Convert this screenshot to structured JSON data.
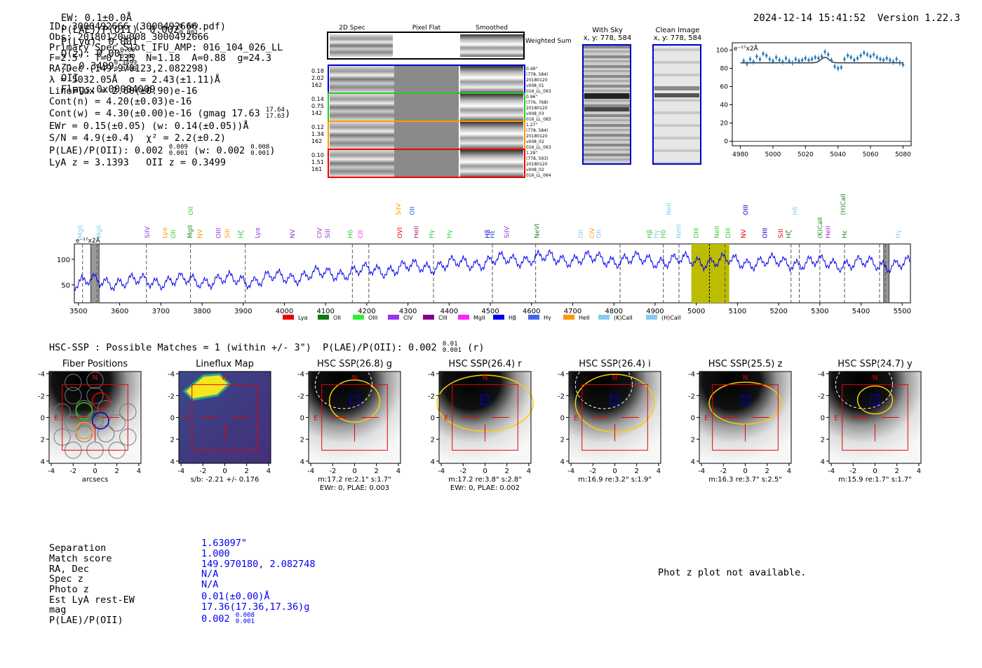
{
  "header": {
    "ew": "EW: 0.1±0.0Å",
    "plae_oii": "P(LAE)/P(OII): 0.002",
    "plae_hi": "0.009",
    "plae_lo": "0.001",
    "plya": "P(Lyα): 0.001",
    "qz": "Q(z): 0.00",
    "qz_hi": "0.00",
    "qz_lo": "0.00",
    "z": "z: 0.3499",
    "z_hi": "0.3499",
    "z_lo": "0.3499",
    "z_line": "OII",
    "flags": "Flags:0x00004009",
    "timestamp": "2024-12-14 15:41:52",
    "version": "Version 1.22.3"
  },
  "info": {
    "id": "ID: 3000492666 (3000492666.pdf)",
    "obs": "Obs: 20180120v008_3000492666",
    "primary": "Primary Spec_Slot_IFU_AMP: 016_104_026_LL",
    "params": "F=2.5\"  T=0.135  N=1.18  A=0.88  g=24.3",
    "radec": "RA,Dec (149.970123,2.082298)",
    "lambda": "λ = 5032.05Å  σ = 2.43(±1.11)Å",
    "lineflux": "LineFlux = 2.60(±0.90)e-16",
    "contn": "Cont(n) = 4.20(±0.03)e-16",
    "contw": "Cont(w) = 4.30(±0.00)e-16 (gmag 17.63",
    "contw_hi": "17.64",
    "contw_lo": "17.63",
    "ewr": "EWr = 0.15(±0.05) (w: 0.14(±0.05))Å",
    "sn": "S/N = 4.9(±0.4)  χ² = 2.2(±0.2)",
    "plae": "P(LAE)/P(OII): 0.002",
    "plae_hi": "0.009",
    "plae_lo": "0.001",
    "plae_w": "(w: 0.002",
    "plae_w_hi": "0.008",
    "plae_w_lo": "0.001",
    "lya_z": "LyA z = 3.1393   OII z = 0.3499"
  },
  "cutouts": {
    "col_2d": "2D Spec",
    "col_flat": "Pixel Flat",
    "col_smooth": "Smoothed",
    "weighted": "Weighted Sum",
    "rows": [
      {
        "a": "0.18",
        "b": "2.02",
        "c": "162",
        "note1": "0.49\"",
        "note2": "(778, 584)",
        "note3": "20180120",
        "note4": "v008_01",
        "note5": "016_LL_063",
        "color": "#0000cc"
      },
      {
        "a": "0.14",
        "b": "0.75",
        "c": "142",
        "note1": "0.96\"",
        "note2": "(776, 768)",
        "note3": "20180120",
        "note4": "v008_03",
        "note5": "016_LL_083",
        "color": "#22cc22"
      },
      {
        "a": "0.12",
        "b": "1.34",
        "c": "162",
        "note1": "1.27\"",
        "note2": "(778, 584)",
        "note3": "20180120",
        "note4": "v008_02",
        "note5": "016_LL_063",
        "color": "#ff9900"
      },
      {
        "a": "0.10",
        "b": "1.51",
        "c": "161",
        "note1": "1.29\"",
        "note2": "(778, 593)",
        "note3": "20180120",
        "note4": "v008_02",
        "note5": "016_LL_064",
        "color": "#ee0000"
      }
    ],
    "with_sky": "With Sky",
    "with_sky_xy": "x, y: 778, 584",
    "clean": "Clean Image",
    "clean_xy": "x, y: 778, 584"
  },
  "line_fit": {
    "unit": "e⁻¹⁷x2Å",
    "xlim": [
      4975,
      5085
    ],
    "ylim": [
      -5,
      108
    ],
    "xticks": [
      4980,
      5000,
      5020,
      5040,
      5060,
      5080
    ],
    "yticks": [
      0,
      20,
      40,
      60,
      80,
      100
    ],
    "points": [
      [
        4982,
        88
      ],
      [
        4984,
        85
      ],
      [
        4986,
        90
      ],
      [
        4988,
        87
      ],
      [
        4990,
        93
      ],
      [
        4992,
        90
      ],
      [
        4994,
        96
      ],
      [
        4996,
        94
      ],
      [
        4998,
        90
      ],
      [
        5000,
        88
      ],
      [
        5002,
        92
      ],
      [
        5004,
        89
      ],
      [
        5006,
        87
      ],
      [
        5008,
        91
      ],
      [
        5010,
        88
      ],
      [
        5012,
        86
      ],
      [
        5014,
        90
      ],
      [
        5016,
        88
      ],
      [
        5018,
        89
      ],
      [
        5020,
        91
      ],
      [
        5022,
        89
      ],
      [
        5024,
        90
      ],
      [
        5026,
        92
      ],
      [
        5028,
        91
      ],
      [
        5030,
        93
      ],
      [
        5032,
        98
      ],
      [
        5034,
        95
      ],
      [
        5036,
        89
      ],
      [
        5038,
        82
      ],
      [
        5040,
        80
      ],
      [
        5042,
        81
      ],
      [
        5044,
        90
      ],
      [
        5046,
        94
      ],
      [
        5048,
        92
      ],
      [
        5050,
        89
      ],
      [
        5052,
        91
      ],
      [
        5054,
        94
      ],
      [
        5056,
        97
      ],
      [
        5058,
        95
      ],
      [
        5060,
        93
      ],
      [
        5062,
        95
      ],
      [
        5064,
        92
      ],
      [
        5066,
        90
      ],
      [
        5068,
        89
      ],
      [
        5070,
        91
      ],
      [
        5072,
        89
      ],
      [
        5074,
        87
      ],
      [
        5076,
        90
      ],
      [
        5078,
        86
      ],
      [
        5080,
        84
      ]
    ],
    "fit_base": 86,
    "fit_peak": 6,
    "fit_center": 5032,
    "fit_sigma": 2.43
  },
  "spectrum": {
    "unit": "e⁻¹⁷x2Å",
    "xlim": [
      3490,
      5520
    ],
    "ylim": [
      15,
      130
    ],
    "xticks": [
      3500,
      3600,
      3700,
      3800,
      3900,
      4000,
      4100,
      4200,
      4300,
      4400,
      4500,
      4600,
      4700,
      4800,
      4900,
      5000,
      5100,
      5200,
      5300,
      5400,
      5500
    ],
    "yticks": [
      50,
      100
    ],
    "highlight": [
      4988,
      5080
    ],
    "line_pos": 5032,
    "hatched": [
      [
        3530,
        3550
      ],
      [
        5455,
        5468
      ]
    ],
    "dashed": [
      3510,
      3545,
      3665,
      3772,
      3905,
      4165,
      4205,
      4362,
      4505,
      4610,
      4815,
      4920,
      4958,
      5070,
      5230,
      5250,
      5300,
      5360,
      5445,
      5460
    ],
    "line_labels": [
      {
        "t": "MgII",
        "x": 3510,
        "c": "#88ccee",
        "h": 1
      },
      {
        "t": "MgII",
        "x": 3555,
        "c": "#88ccee",
        "h": 1
      },
      {
        "t": "SiIV",
        "x": 3672,
        "c": "#9933cc",
        "h": 1
      },
      {
        "t": "Lyα",
        "x": 3715,
        "c": "#ff9900",
        "h": 1
      },
      {
        "t": "OII",
        "x": 3735,
        "c": "#33cc33",
        "h": 1
      },
      {
        "t": "OII",
        "x": 3778,
        "c": "#33cc33",
        "h": 3
      },
      {
        "t": "MgII",
        "x": 3776,
        "c": "#228822",
        "h": 1
      },
      {
        "t": "NV",
        "x": 3800,
        "c": "#ff9900",
        "h": 1
      },
      {
        "t": "OIII",
        "x": 3845,
        "c": "#9933cc",
        "h": 1
      },
      {
        "t": "SiII",
        "x": 3866,
        "c": "#ff9900",
        "h": 1
      },
      {
        "t": "Hζ",
        "x": 3900,
        "c": "#33cc33",
        "h": 1
      },
      {
        "t": "Lyα",
        "x": 3940,
        "c": "#9933cc",
        "h": 1
      },
      {
        "t": "NV",
        "x": 4025,
        "c": "#9933cc",
        "h": 1
      },
      {
        "t": "CIV",
        "x": 4090,
        "c": "#9933cc",
        "h": 1
      },
      {
        "t": "SiII",
        "x": 4110,
        "c": "#9933cc",
        "h": 1
      },
      {
        "t": "Hδ",
        "x": 4165,
        "c": "#33cc33",
        "h": 1
      },
      {
        "t": "CII",
        "x": 4190,
        "c": "#ff22ff",
        "h": 1
      },
      {
        "t": "SiIV",
        "x": 4282,
        "c": "#ff9900",
        "h": 3
      },
      {
        "t": "OVI",
        "x": 4285,
        "c": "#ee0000",
        "h": 1
      },
      {
        "t": "HeII",
        "x": 4325,
        "c": "#aa2266",
        "h": 1
      },
      {
        "t": "OII",
        "x": 4315,
        "c": "#2255ee",
        "h": 3
      },
      {
        "t": "Hγ",
        "x": 4362,
        "c": "#33cc33",
        "h": 1
      },
      {
        "t": "Hγ",
        "x": 4405,
        "c": "#33cc33",
        "h": 1
      },
      {
        "t": "Hβ",
        "x": 4498,
        "c": "#0000cc",
        "h": 1
      },
      {
        "t": "Hε",
        "x": 4510,
        "c": "#2255ee",
        "h": 1
      },
      {
        "t": "SiIV",
        "x": 4545,
        "c": "#9933cc",
        "h": 1
      },
      {
        "t": "NeVI",
        "x": 4618,
        "c": "#228822",
        "h": 1
      },
      {
        "t": "OII",
        "x": 4725,
        "c": "#88ccee",
        "h": 1
      },
      {
        "t": "CIV",
        "x": 4752,
        "c": "#ff9900",
        "h": 1
      },
      {
        "t": "OII",
        "x": 4768,
        "c": "#88ccee",
        "h": 1
      },
      {
        "t": "Hβ",
        "x": 4892,
        "c": "#33cc33",
        "h": 1
      },
      {
        "t": "Hγ",
        "x": 4908,
        "c": "#88ccee",
        "h": 1
      },
      {
        "t": "NeII",
        "x": 4938,
        "c": "#88ccee",
        "h": 3
      },
      {
        "t": "Hδ",
        "x": 4925,
        "c": "#33cc33",
        "h": 1
      },
      {
        "t": "NeIII",
        "x": 4962,
        "c": "#88ccee",
        "h": 1
      },
      {
        "t": "OIII",
        "x": 5005,
        "c": "#33cc33",
        "h": 1
      },
      {
        "t": "NeII",
        "x": 5055,
        "c": "#33cc33",
        "h": 1
      },
      {
        "t": "OIII",
        "x": 5082,
        "c": "#33cc33",
        "h": 1
      },
      {
        "t": "OIII",
        "x": 5125,
        "c": "#0000cc",
        "h": 3
      },
      {
        "t": "NV",
        "x": 5120,
        "c": "#ee0000",
        "h": 1
      },
      {
        "t": "OIII",
        "x": 5172,
        "c": "#0000cc",
        "h": 1
      },
      {
        "t": "SiII",
        "x": 5210,
        "c": "#ee0000",
        "h": 1
      },
      {
        "t": "Hζ",
        "x": 5230,
        "c": "#228822",
        "h": 1
      },
      {
        "t": "Hδ",
        "x": 5245,
        "c": "#88ccee",
        "h": 3
      },
      {
        "t": "(K)CaII",
        "x": 5305,
        "c": "#228822",
        "h": 1
      },
      {
        "t": "HeII",
        "x": 5325,
        "c": "#9933cc",
        "h": 1
      },
      {
        "t": "Hε",
        "x": 5365,
        "c": "#228822",
        "h": 1
      },
      {
        "t": "(H)CaII",
        "x": 5362,
        "c": "#228822",
        "h": 3
      },
      {
        "t": "Hγ",
        "x": 5495,
        "c": "#88ccee",
        "h": 1
      }
    ],
    "legend": [
      {
        "t": "Lyα",
        "c": "#ee0000"
      },
      {
        "t": "OII",
        "c": "#117711"
      },
      {
        "t": "OIII",
        "c": "#33ee33"
      },
      {
        "t": "CIV",
        "c": "#9933ee"
      },
      {
        "t": "CIII",
        "c": "#880088"
      },
      {
        "t": "MgII",
        "c": "#ff22ff"
      },
      {
        "t": "Hβ",
        "c": "#0000ee"
      },
      {
        "t": "Hγ",
        "c": "#4466ee"
      },
      {
        "t": "HeII",
        "c": "#ff9900"
      },
      {
        "t": "(K)CaII",
        "c": "#88ccee"
      },
      {
        "t": "(H)CaII",
        "c": "#88ccee"
      }
    ]
  },
  "hsc": {
    "title_pre": "HSC-SSP : Possible Matches = 1 (within +/- 3\")  P(LAE)/P(OII): 0.002",
    "title_hi": "0.01",
    "title_lo": "0.001",
    "title_post": "(r)",
    "panels": [
      {
        "title": "Fiber Positions",
        "cap1": "arcsecs",
        "cap2": ""
      },
      {
        "title": "Lineflux Map",
        "cap1": "s/b: -2.21 +/- 0.176",
        "cap2": ""
      },
      {
        "title": "HSC SSP(26.8) g",
        "cap1": "m:17.2  re:2.1\"  s:1.7\"",
        "cap2": "EWr: 0, PLAE: 0.003"
      },
      {
        "title": "HSC SSP(26.4) r",
        "cap1": "m:17.2  re:3.8\"  s:2.8\"",
        "cap2": "EWr: 0, PLAE: 0.002"
      },
      {
        "title": "HSC SSP(26.4) i",
        "cap1": "m:16.9  re:3.2\"  s:1.9\"",
        "cap2": ""
      },
      {
        "title": "HSC SSP(25.5) z",
        "cap1": "m:16.3  re:3.7\"  s:2.5\"",
        "cap2": ""
      },
      {
        "title": "HSC SSP(24.7) y",
        "cap1": "m:15.9  re:1.7\"  s:1.7\"",
        "cap2": ""
      }
    ],
    "ticks": [
      "-4",
      "-2",
      "0",
      "2",
      "4"
    ],
    "north": "N",
    "east": "E"
  },
  "match": {
    "labels": [
      "Separation",
      "Match score",
      "RA, Dec",
      "Spec z",
      "Photo z",
      "Est LyA rest-EW",
      "mag",
      "P(LAE)/P(OII)"
    ],
    "sep": "1.63097\"",
    "score": "1.000",
    "radec": "149.970180, 2.082748",
    "specz": "N/A",
    "photoz": "N/A",
    "ew": "0.01(±0.00)Å",
    "mag": "17.36(17.36,17.36)g",
    "plae": "0.002",
    "plae_hi": "0.008",
    "plae_lo": "0.001",
    "photz_msg": "Phot z plot not available."
  }
}
